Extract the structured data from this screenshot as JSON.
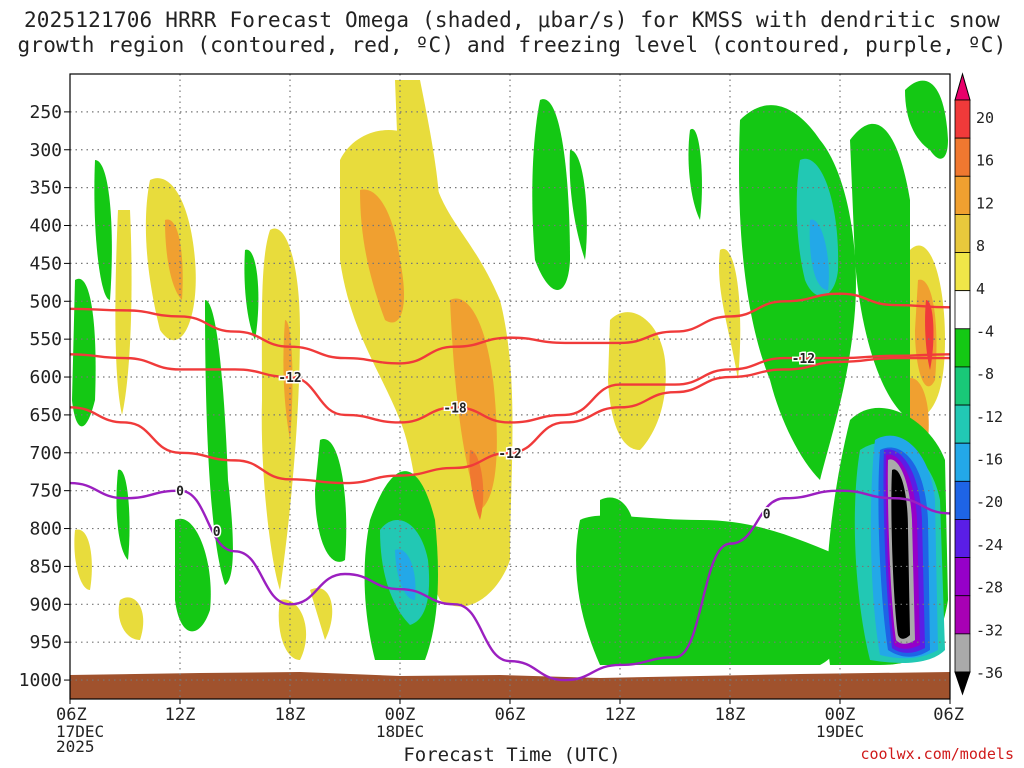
{
  "chart_data": {
    "type": "heatmap",
    "title_line1": "2025121706 HRRR Forecast Omega (shaded, μbar/s) for KMSS with dendritic snow",
    "title_line2": "growth region (contoured, red, ºC) and freezing level (contoured, purple, ºC)",
    "xlabel": "Forecast Time (UTC)",
    "x_ticks": [
      "06Z",
      "12Z",
      "18Z",
      "00Z",
      "06Z",
      "12Z",
      "18Z",
      "00Z",
      "06Z"
    ],
    "x_date_labels": [
      {
        "tick_index": 0,
        "lines": [
          "17DEC",
          "2025"
        ]
      },
      {
        "tick_index": 3,
        "lines": [
          "18DEC"
        ]
      },
      {
        "tick_index": 7,
        "lines": [
          "19DEC"
        ]
      }
    ],
    "y_ticks": [
      250,
      300,
      350,
      400,
      450,
      500,
      550,
      600,
      650,
      700,
      750,
      800,
      850,
      900,
      950,
      1000
    ],
    "ylim": [
      200,
      1025
    ],
    "colorbar": {
      "ticks": [
        20,
        16,
        12,
        8,
        4,
        -4,
        -8,
        -12,
        -16,
        -20,
        -24,
        -28,
        -32,
        -36
      ],
      "colors": [
        "#e8006a",
        "#f03a3a",
        "#f07830",
        "#f0a030",
        "#e8c83c",
        "#f0e648",
        "#ffffff",
        "#14c814",
        "#19c878",
        "#22c8b4",
        "#23a8e8",
        "#1e64e6",
        "#5a1ee6",
        "#9600c8",
        "#a800b4",
        "#aaaaaa",
        "#000000"
      ]
    },
    "contour_labels": {
      "dendritic_red": [
        "-12",
        "-18",
        "-12",
        "-12"
      ],
      "freezing_purple": [
        "0",
        "0",
        "0"
      ]
    },
    "series": [
      {
        "name": "dgz_top",
        "color": "#f03a3a",
        "x_hours": [
          0,
          3,
          6,
          9,
          12,
          15,
          18,
          21,
          24,
          27,
          30,
          33,
          36,
          39,
          42,
          45,
          48
        ],
        "p_hPa": [
          510,
          512,
          520,
          540,
          560,
          575,
          582,
          560,
          548,
          555,
          555,
          540,
          520,
          500,
          490,
          505,
          508
        ]
      },
      {
        "name": "dgz_mid",
        "color": "#f03a3a",
        "x_hours": [
          0,
          3,
          6,
          9,
          12,
          15,
          18,
          21,
          24,
          27,
          30,
          33,
          36,
          39,
          42,
          45,
          48
        ],
        "p_hPa": [
          570,
          575,
          590,
          590,
          600,
          650,
          660,
          640,
          660,
          650,
          610,
          610,
          590,
          575,
          575,
          572,
          570
        ]
      },
      {
        "name": "dgz_bottom",
        "color": "#f03a3a",
        "x_hours": [
          0,
          3,
          6,
          9,
          12,
          15,
          18,
          21,
          24,
          27,
          30,
          33,
          36,
          39,
          42,
          45,
          48
        ],
        "p_hPa": [
          640,
          660,
          700,
          710,
          735,
          740,
          730,
          720,
          700,
          660,
          640,
          620,
          600,
          590,
          580,
          575,
          575
        ]
      },
      {
        "name": "freezing_level",
        "color": "#9b1fc0",
        "x_hours": [
          0,
          3,
          6,
          9,
          12,
          15,
          18,
          21,
          24,
          27,
          30,
          33,
          36,
          39,
          42,
          45,
          48
        ],
        "p_hPa": [
          740,
          760,
          750,
          830,
          900,
          860,
          880,
          900,
          975,
          1000,
          980,
          970,
          820,
          760,
          750,
          760,
          780
        ]
      }
    ]
  },
  "footer": {
    "credit": "coolwx.com/models",
    "xtitle": "Forecast Time (UTC)"
  }
}
